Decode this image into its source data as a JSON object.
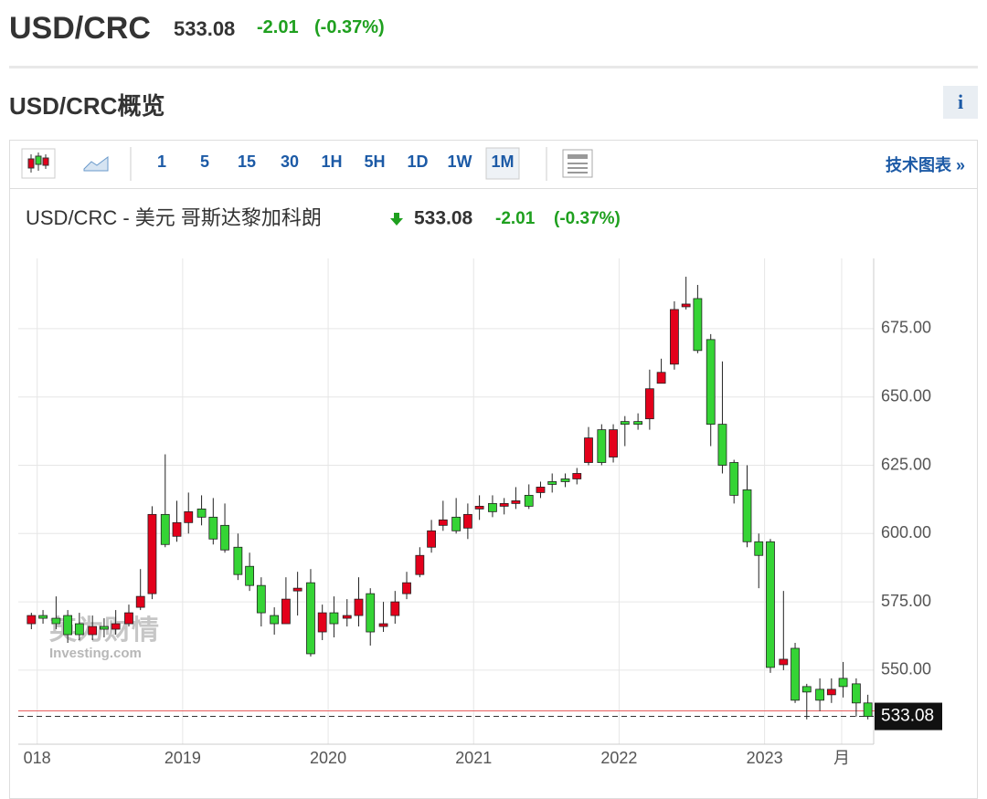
{
  "header": {
    "symbol": "USD/CRC",
    "price": "533.08",
    "change": "-2.01",
    "change_pct": "(-0.37%)",
    "section_title": "USD/CRC概览",
    "info_button": "i"
  },
  "toolbar": {
    "intervals": [
      "1",
      "5",
      "15",
      "30",
      "1H",
      "5H",
      "1D",
      "1W",
      "1M"
    ],
    "active_interval": "1M",
    "tech_link": "技术图表 »"
  },
  "chart_data": {
    "type": "candlestick",
    "title": "USD/CRC - 美元 哥斯达黎加科朗",
    "price": "533.08",
    "change": "-2.01",
    "change_pct": "(-0.37%)",
    "watermark": {
      "cn": "英为财情",
      "en": "Investing.com"
    },
    "up_color": "#e3001b",
    "down_color": "#35d435",
    "x": [
      2017.96,
      2018.04,
      2018.13,
      2018.21,
      2018.29,
      2018.38,
      2018.46,
      2018.54,
      2018.63,
      2018.71,
      2018.79,
      2018.88,
      2018.96,
      2019.04,
      2019.13,
      2019.21,
      2019.29,
      2019.38,
      2019.46,
      2019.54,
      2019.63,
      2019.71,
      2019.79,
      2019.88,
      2019.96,
      2020.04,
      2020.13,
      2020.21,
      2020.29,
      2020.38,
      2020.46,
      2020.54,
      2020.63,
      2020.71,
      2020.79,
      2020.88,
      2020.96,
      2021.04,
      2021.13,
      2021.21,
      2021.29,
      2021.38,
      2021.46,
      2021.54,
      2021.63,
      2021.71,
      2021.79,
      2021.88,
      2021.96,
      2022.04,
      2022.13,
      2022.21,
      2022.29,
      2022.38,
      2022.46,
      2022.54,
      2022.63,
      2022.71,
      2022.79,
      2022.88,
      2022.96,
      2023.04,
      2023.13,
      2023.21,
      2023.29,
      2023.38,
      2023.46,
      2023.54,
      2023.63,
      2023.71
    ],
    "open": [
      567,
      570,
      569,
      570,
      567,
      563,
      566,
      565,
      567,
      573,
      578,
      607,
      599,
      604,
      609,
      606,
      603,
      595,
      588,
      581,
      570,
      567,
      579,
      582,
      564,
      571,
      569,
      570,
      578,
      566,
      570,
      578,
      585,
      595,
      603,
      606,
      602,
      609,
      611,
      610,
      611,
      614,
      615,
      619,
      620,
      620,
      626,
      638,
      628,
      641,
      641,
      642,
      655,
      662,
      683,
      686,
      671,
      640,
      626,
      616,
      597,
      597,
      552,
      558,
      544,
      543,
      541,
      547,
      545,
      538
    ],
    "high": [
      571,
      572,
      577,
      572,
      571,
      570,
      569,
      572,
      574,
      587,
      610,
      629,
      612,
      615,
      614,
      613,
      611,
      600,
      593,
      584,
      573,
      584,
      586,
      587,
      574,
      577,
      576,
      584,
      580,
      575,
      579,
      586,
      595,
      605,
      612,
      613,
      611,
      614,
      614,
      613,
      617,
      618,
      619,
      622,
      622,
      624,
      639,
      640,
      640,
      643,
      644,
      660,
      664,
      685,
      694,
      691,
      673,
      663,
      627,
      625,
      600,
      598,
      579,
      560,
      545,
      547,
      547,
      553,
      547,
      541
    ],
    "low": [
      565,
      567,
      565,
      560,
      561,
      561,
      562,
      563,
      566,
      572,
      576,
      595,
      597,
      600,
      603,
      596,
      593,
      583,
      579,
      566,
      563,
      567,
      570,
      555,
      561,
      562,
      566,
      566,
      559,
      564,
      567,
      576,
      584,
      593,
      601,
      600,
      598,
      605,
      606,
      607,
      609,
      609,
      613,
      615,
      617,
      618,
      625,
      625,
      626,
      632,
      638,
      638,
      655,
      660,
      682,
      666,
      632,
      622,
      611,
      595,
      580,
      549,
      550,
      538,
      532,
      535,
      538,
      540,
      533,
      532
    ],
    "close": [
      570,
      569,
      567,
      563,
      563,
      566,
      565,
      567,
      571,
      577,
      607,
      596,
      604,
      608,
      606,
      598,
      594,
      585,
      581,
      571,
      567,
      576,
      580,
      556,
      571,
      567,
      570,
      576,
      564,
      567,
      575,
      582,
      592,
      601,
      605,
      601,
      607,
      610,
      608,
      611,
      612,
      610,
      617,
      618,
      619,
      622,
      635,
      626,
      638,
      640,
      640,
      653,
      659,
      682,
      684,
      667,
      640,
      625,
      614,
      597,
      592,
      551,
      554,
      539,
      542,
      539,
      543,
      544,
      538,
      533.08
    ],
    "last_price": 533.08,
    "prev_close": 535.09,
    "xlim": [
      2017.87,
      2023.75
    ],
    "xticks": [
      {
        "value": 2018,
        "label": "018"
      },
      2019,
      2020,
      2021,
      2022,
      2023,
      {
        "value": 2023.53,
        "label": "月"
      }
    ],
    "ylim": [
      522.9,
      700.7
    ],
    "yticks": [
      {
        "value": 550,
        "label": "550.00"
      },
      {
        "value": 575,
        "label": "575.00"
      },
      {
        "value": 600,
        "label": "600.00"
      },
      {
        "value": 625,
        "label": "625.00"
      },
      {
        "value": 650,
        "label": "650.00"
      },
      {
        "value": 675,
        "label": "675.00"
      }
    ],
    "grid": true
  }
}
